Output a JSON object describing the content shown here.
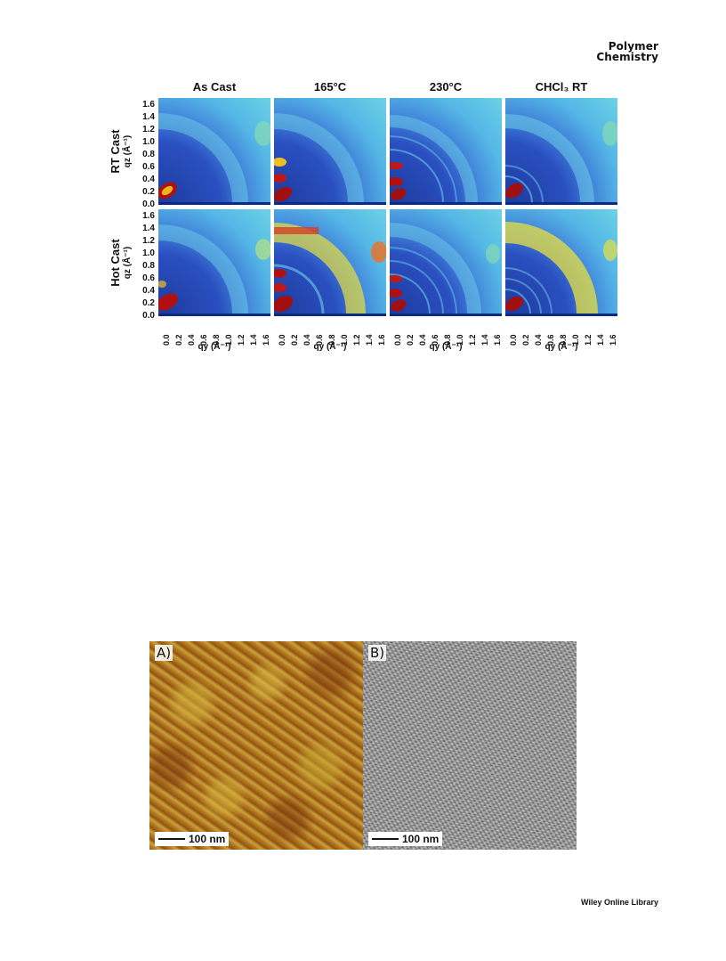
{
  "journal": {
    "line1": "Polymer",
    "line2": "Chemistry"
  },
  "figure1": {
    "columns": [
      "As Cast",
      "165°C",
      "230°C",
      "CHCl₃ RT"
    ],
    "rows": [
      "RT Cast",
      "Hot Cast"
    ],
    "y_axis_label": "qz (Å⁻¹)",
    "x_axis_label": "qy (Å⁻¹)",
    "y_ticks": [
      "1.6",
      "1.4",
      "1.2",
      "1.0",
      "0.8",
      "0.6",
      "0.4",
      "0.2",
      "0.0"
    ],
    "x_ticks": [
      "0.0",
      "0.2",
      "0.4",
      "0.6",
      "0.8",
      "1.0",
      "1.2",
      "1.4",
      "1.6"
    ]
  },
  "figure2": {
    "panel_a_label": "A)",
    "panel_b_label": "B)",
    "scale_a": "100 nm",
    "scale_b": "100 nm"
  },
  "footer": {
    "text": "Wiley Online Library"
  }
}
